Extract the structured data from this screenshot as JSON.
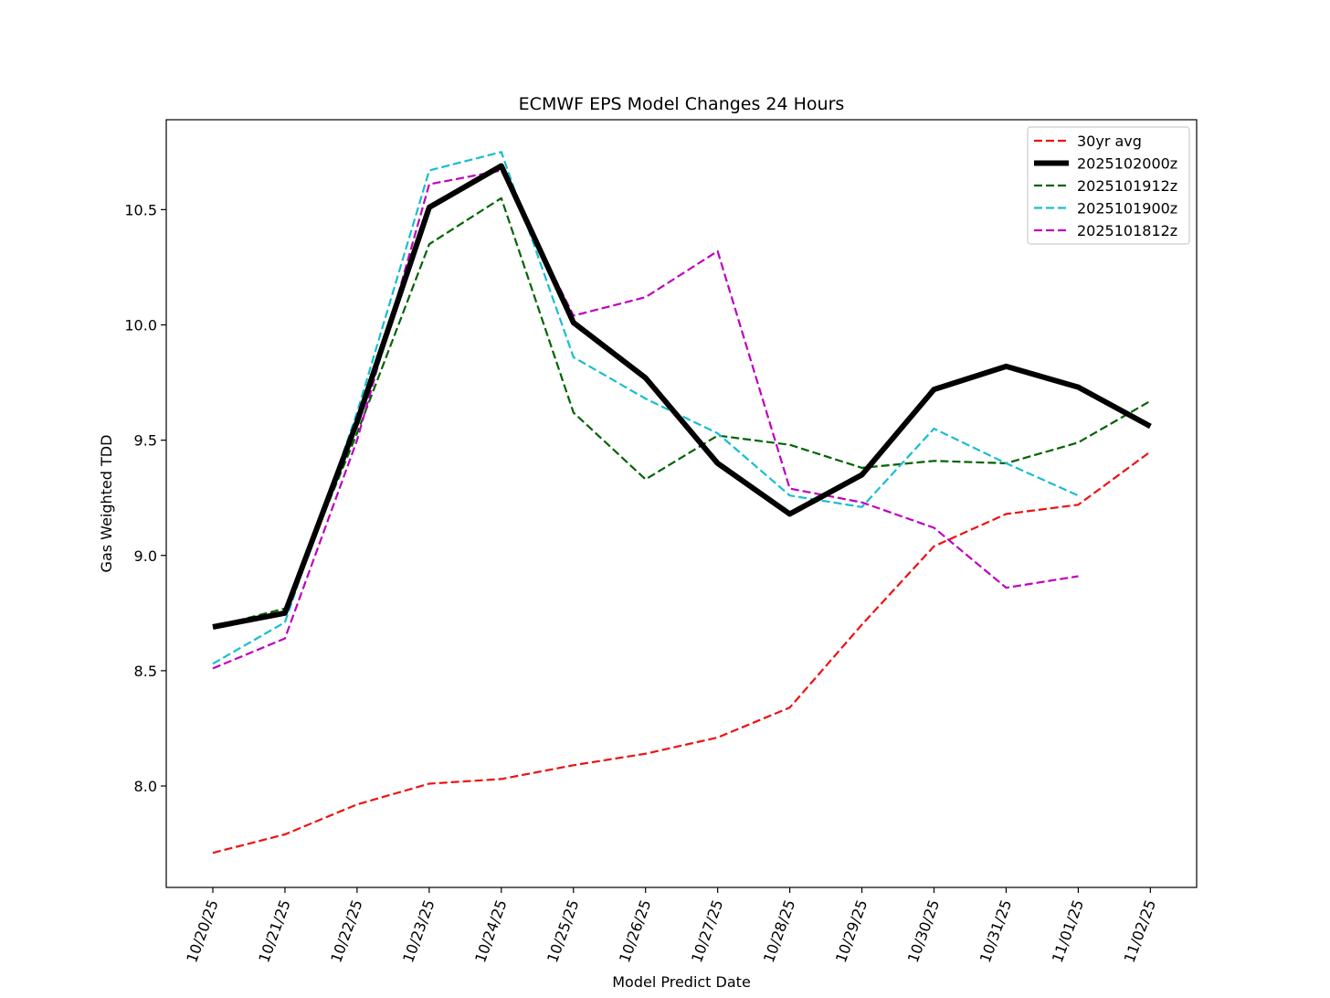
{
  "chart_data": {
    "type": "line",
    "title": "ECMWF EPS Model Changes 24 Hours",
    "xlabel": "Model Predict Date",
    "ylabel": "Gas Weighted TDD",
    "categories": [
      "10/20/25",
      "10/21/25",
      "10/22/25",
      "10/23/25",
      "10/24/25",
      "10/25/25",
      "10/26/25",
      "10/27/25",
      "10/28/25",
      "10/29/25",
      "10/30/25",
      "10/31/25",
      "11/01/25",
      "11/02/25"
    ],
    "ylim": [
      7.56,
      10.89
    ],
    "yticks": [
      8.0,
      8.5,
      9.0,
      9.5,
      10.0,
      10.5
    ],
    "ytick_labels": [
      "8.0",
      "8.5",
      "9.0",
      "9.5",
      "10.0",
      "10.5"
    ],
    "legend_position": "top-right",
    "grid": false,
    "series": [
      {
        "name": "30yr avg",
        "color": "#ee1111",
        "style": "dashed",
        "values": [
          7.71,
          7.79,
          7.92,
          8.01,
          8.03,
          8.09,
          8.14,
          8.21,
          8.34,
          8.7,
          9.04,
          9.18,
          9.22,
          9.45
        ]
      },
      {
        "name": "2025102000z",
        "color": "#000000",
        "style": "solid",
        "values": [
          8.69,
          8.75,
          9.58,
          10.51,
          10.69,
          10.01,
          9.77,
          9.4,
          9.18,
          9.35,
          9.72,
          9.82,
          9.73,
          9.56
        ]
      },
      {
        "name": "2025101912z",
        "color": "#006400",
        "style": "dashed",
        "values": [
          8.69,
          8.77,
          9.53,
          10.35,
          10.55,
          9.62,
          9.33,
          9.52,
          9.48,
          9.38,
          9.41,
          9.4,
          9.49,
          9.67
        ]
      },
      {
        "name": "2025101900z",
        "color": "#17becf",
        "style": "dashed",
        "values": [
          8.53,
          8.71,
          9.62,
          10.67,
          10.75,
          9.86,
          9.68,
          9.53,
          9.26,
          9.21,
          9.55,
          9.4,
          9.26,
          null
        ]
      },
      {
        "name": "2025101812z",
        "color": "#bf00bf",
        "style": "dashed",
        "values": [
          8.51,
          8.64,
          9.5,
          10.61,
          10.67,
          10.04,
          10.12,
          10.32,
          9.29,
          9.23,
          9.12,
          8.86,
          8.91,
          null
        ]
      }
    ]
  }
}
